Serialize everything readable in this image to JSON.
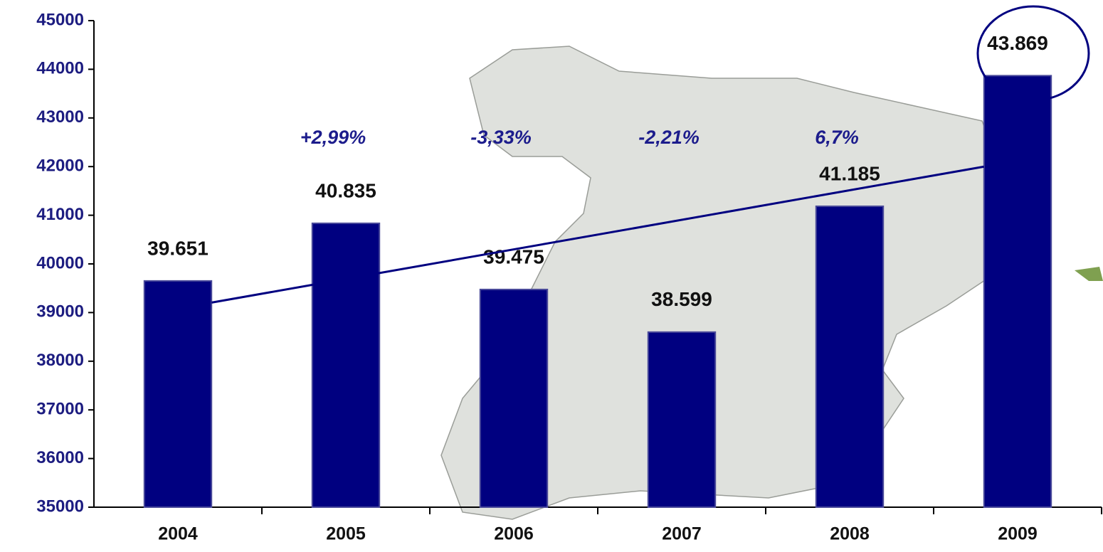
{
  "chart_data": {
    "type": "bar",
    "categories": [
      "2004",
      "2005",
      "2006",
      "2007",
      "2008",
      "2009"
    ],
    "values": [
      39651,
      40835,
      39475,
      38599,
      41185,
      43869
    ],
    "value_labels": [
      "39.651",
      "40.835",
      "39.475",
      "38.599",
      "41.185",
      "43.869"
    ],
    "annotations": [
      "+2,99%",
      "-3,33%",
      "-2,21%",
      "6,7%"
    ],
    "color": "#000080",
    "trend_line": true,
    "ylim": [
      35000,
      45000
    ],
    "yticks": [
      35000,
      36000,
      37000,
      38000,
      39000,
      40000,
      41000,
      42000,
      43000,
      44000,
      45000
    ]
  }
}
